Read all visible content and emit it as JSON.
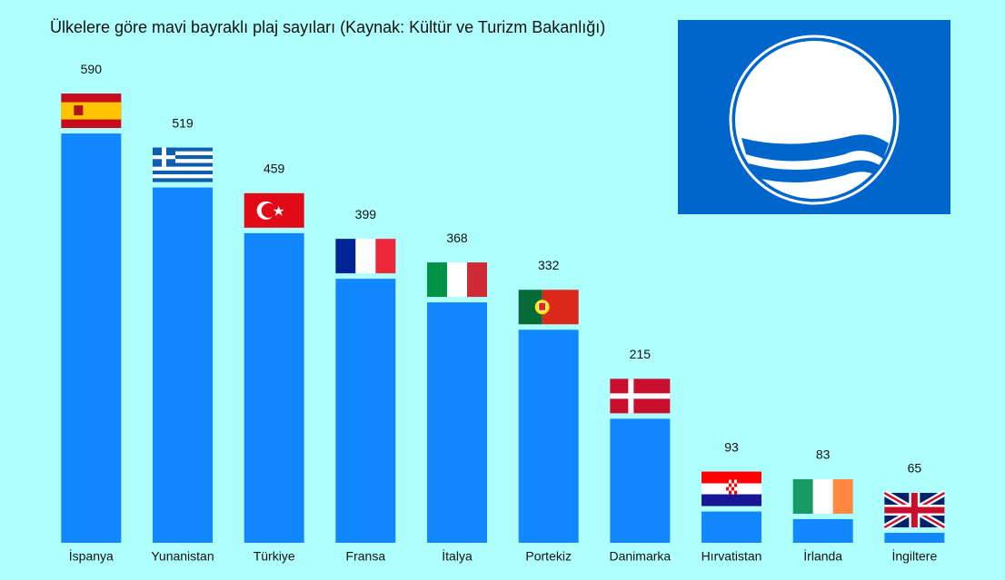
{
  "chart_data": {
    "type": "bar",
    "title": "Ülkelere göre mavi bayraklı plaj sayıları (Kaynak: Kültür ve Turizm Bakanlığı)",
    "categories": [
      "İspanya",
      "Yunanistan",
      "Türkiye",
      "Fransa",
      "İtalya",
      "Portekiz",
      "Danimarka",
      "Hırvatistan",
      "İrlanda",
      "İngiltere"
    ],
    "values": [
      590,
      519,
      459,
      399,
      368,
      332,
      215,
      93,
      83,
      65
    ],
    "color": "#1188ff"
  }
}
